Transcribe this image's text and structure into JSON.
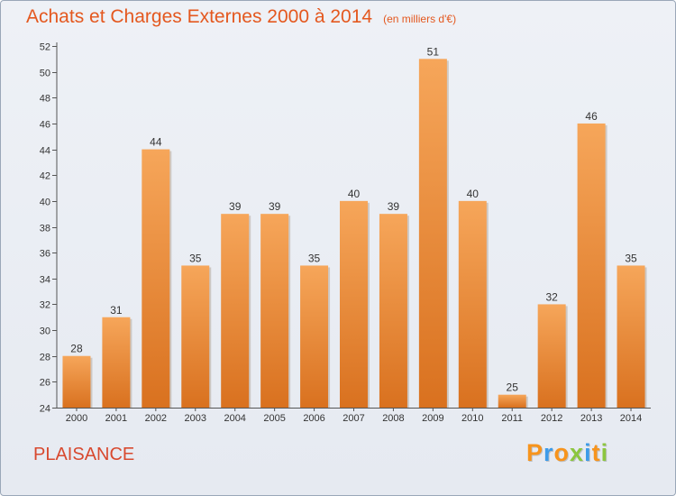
{
  "header": {
    "title": "Achats et Charges Externes 2000 à 2014",
    "subtitle": "(en milliers d'€)"
  },
  "footer": {
    "commune": "PLAISANCE",
    "brand": "Proxiti",
    "brand_colors": [
      "#f7941d",
      "#3d9be9",
      "#f7941d",
      "#8cc63f",
      "#3d9be9",
      "#f7941d",
      "#8cc63f"
    ]
  },
  "colors": {
    "bar_top": "#f6a65a",
    "bar_bottom": "#d9711f",
    "title": "#e4581f"
  },
  "chart_data": {
    "type": "bar",
    "title": "Achats et Charges Externes 2000 à 2014",
    "subtitle": "(en milliers d'€)",
    "categories": [
      "2000",
      "2001",
      "2002",
      "2003",
      "2004",
      "2005",
      "2006",
      "2007",
      "2008",
      "2009",
      "2010",
      "2011",
      "2012",
      "2013",
      "2014"
    ],
    "values": [
      28,
      31,
      44,
      35,
      39,
      39,
      35,
      40,
      39,
      51,
      40,
      25,
      32,
      46,
      35
    ],
    "ylim": [
      24,
      52
    ],
    "yticks": [
      24,
      26,
      28,
      30,
      32,
      34,
      36,
      38,
      40,
      42,
      44,
      46,
      48,
      50,
      52
    ],
    "grid": false,
    "xlabel": "",
    "ylabel": ""
  }
}
